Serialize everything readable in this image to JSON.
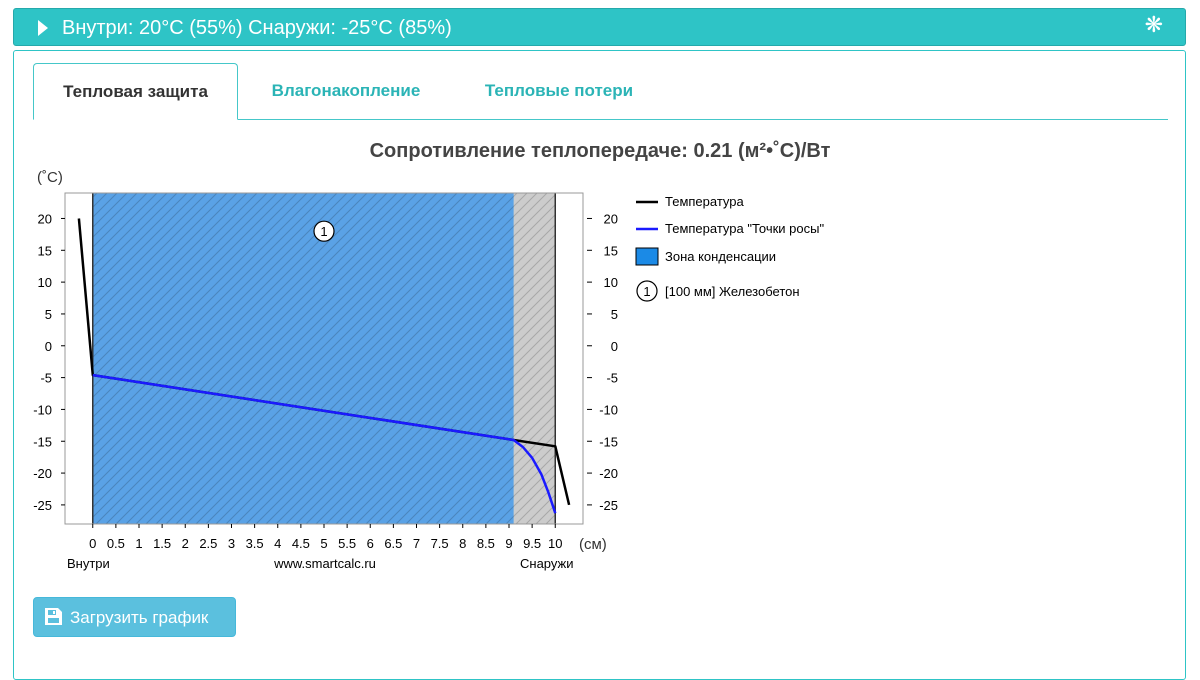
{
  "header": {
    "title": "Внутри: 20°C (55%) Снаружи: -25°C (85%)",
    "settings_icon": "gear-icon"
  },
  "tabs": [
    {
      "label": "Тепловая защита",
      "active": true
    },
    {
      "label": "Влагонакопление",
      "active": false
    },
    {
      "label": "Тепловые потери",
      "active": false
    }
  ],
  "chart_title": "Сопротивление теплопередаче: 0.21 (м²•˚C)/Вт",
  "chart_data": {
    "type": "line",
    "title": "Сопротивление теплопередаче: 0.21 (м²•˚C)/Вт",
    "ylabel": "(˚C)",
    "xlabel": "(см)",
    "ylim": [
      -28,
      24
    ],
    "xlim": [
      -0.6,
      10.6
    ],
    "yticks": [
      20,
      15,
      10,
      5,
      0,
      -5,
      -10,
      -15,
      -20,
      -25
    ],
    "xticks": [
      "0",
      "0.5",
      "1",
      "1.5",
      "2",
      "2.5",
      "3",
      "3.5",
      "4",
      "4.5",
      "5",
      "5.5",
      "6",
      "6.5",
      "7",
      "7.5",
      "8",
      "8.5",
      "9",
      "9.5",
      "10"
    ],
    "xtick_values": [
      0,
      0.5,
      1,
      1.5,
      2,
      2.5,
      3,
      3.5,
      4,
      4.5,
      5,
      5.5,
      6,
      6.5,
      7,
      7.5,
      8,
      8.5,
      9,
      9.5,
      10
    ],
    "bottom_labels": {
      "left": "Внутри",
      "center": "www.smartcalc.ru",
      "right": "Снаружи"
    },
    "layers": [
      {
        "number": "1",
        "from": 0,
        "to": 10,
        "label": "[100 мм] Железобетон"
      }
    ],
    "condensation_zone": {
      "from": 0,
      "to": 9.1
    },
    "series": [
      {
        "name": "Температура",
        "color": "#000000",
        "points": [
          [
            -0.3,
            20
          ],
          [
            0,
            -4.6
          ],
          [
            9.1,
            -14.8
          ],
          [
            10,
            -15.8
          ],
          [
            10.3,
            -25
          ]
        ]
      },
      {
        "name": "Температура \"Точки росы\"",
        "color": "#1a1aff",
        "points": [
          [
            0,
            -4.6
          ],
          [
            9.1,
            -14.8
          ],
          [
            9.3,
            -15.9
          ],
          [
            9.5,
            -17.6
          ],
          [
            9.7,
            -20.2
          ],
          [
            9.85,
            -23.0
          ],
          [
            10,
            -26.3
          ]
        ]
      }
    ],
    "legend": {
      "position": "right",
      "entries": [
        "Температура",
        "Температура \"Точки росы\"",
        "Зона конденсации",
        "[100 мм] Железобетон"
      ]
    },
    "colors": {
      "condensation": "#5aa2e6",
      "layer_fill": "#cccccc",
      "legend_zone": "#1b8ae6"
    }
  },
  "download_button": {
    "label": "Загрузить график",
    "icon": "save-icon"
  },
  "colors": {
    "accent": "#2ec4c6",
    "tab_link": "#2bb4b6",
    "button": "#5bc0de"
  }
}
